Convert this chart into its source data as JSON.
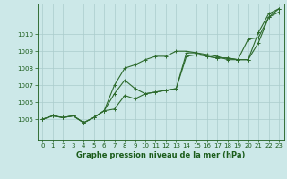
{
  "x": [
    0,
    1,
    2,
    3,
    4,
    5,
    6,
    7,
    8,
    9,
    10,
    11,
    12,
    13,
    14,
    15,
    16,
    17,
    18,
    19,
    20,
    21,
    22,
    23
  ],
  "series": [
    [
      1005.0,
      1005.2,
      1005.1,
      1005.2,
      1004.8,
      1005.1,
      1005.5,
      1006.5,
      1007.3,
      1006.8,
      1006.5,
      1006.6,
      1006.7,
      1006.8,
      1008.9,
      1008.9,
      1008.7,
      1008.6,
      1008.6,
      1008.5,
      1008.5,
      1010.1,
      1011.2,
      1011.5
    ],
    [
      1005.0,
      1005.2,
      1005.1,
      1005.2,
      1004.8,
      1005.1,
      1005.5,
      1005.6,
      1006.4,
      1006.2,
      1006.5,
      1006.6,
      1006.7,
      1006.8,
      1008.7,
      1008.8,
      1008.7,
      1008.6,
      1008.6,
      1008.5,
      1008.5,
      1009.5,
      1011.0,
      1011.3
    ],
    [
      1005.0,
      1005.2,
      1005.1,
      1005.2,
      1004.8,
      1005.1,
      1005.5,
      1007.0,
      1008.0,
      1008.2,
      1008.5,
      1008.7,
      1008.7,
      1009.0,
      1009.0,
      1008.9,
      1008.8,
      1008.7,
      1008.5,
      1008.5,
      1009.7,
      1009.8,
      1011.0,
      1011.5
    ]
  ],
  "line_color": "#2d6a2d",
  "marker": "+",
  "markersize": 3,
  "linewidth": 0.8,
  "background_color": "#cce8e8",
  "grid_color": "#aacccc",
  "text_color": "#1a5c1a",
  "xlabel": "Graphe pression niveau de la mer (hPa)",
  "xlabel_fontsize": 6,
  "tick_fontsize": 5,
  "ylim": [
    1003.8,
    1011.8
  ],
  "yticks": [
    1005,
    1006,
    1007,
    1008,
    1009,
    1010
  ],
  "xlim": [
    -0.5,
    23.5
  ],
  "xticks": [
    0,
    1,
    2,
    3,
    4,
    5,
    6,
    7,
    8,
    9,
    10,
    11,
    12,
    13,
    14,
    15,
    16,
    17,
    18,
    19,
    20,
    21,
    22,
    23
  ]
}
